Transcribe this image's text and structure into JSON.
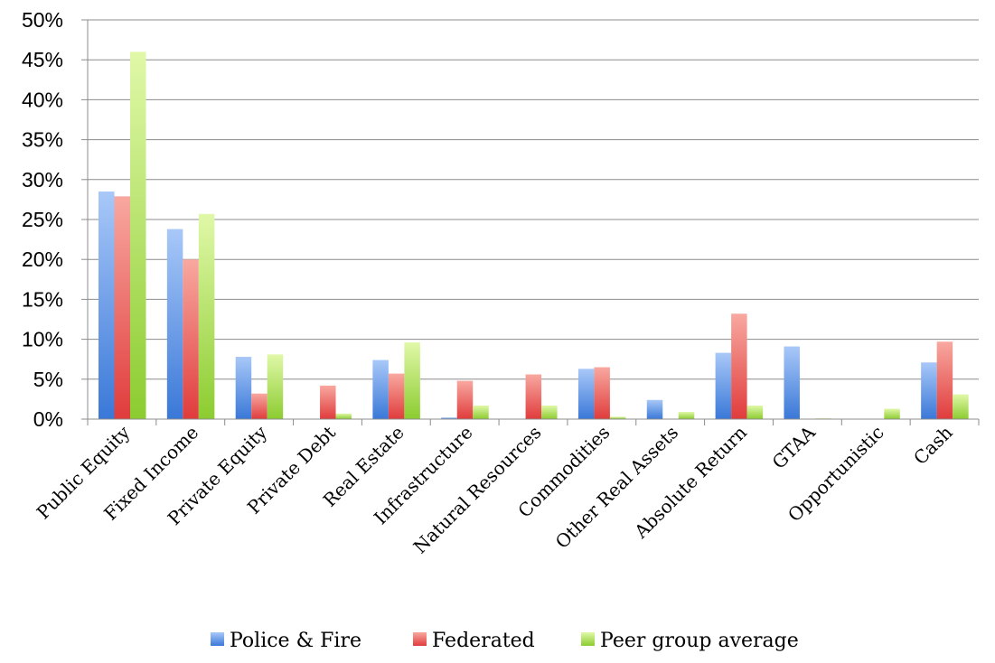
{
  "chart_data": {
    "type": "bar",
    "categories": [
      "Public Equity",
      "Fixed Income",
      "Private Equity",
      "Private Debt",
      "Real Estate",
      "Infrastructure",
      "Natural Resources",
      "Commodities",
      "Other Real Assets",
      "Absolute Return",
      "GTAA",
      "Opportunistic",
      "Cash"
    ],
    "series": [
      {
        "name": "Police & Fire",
        "color": "#4a8fe8",
        "values": [
          28.5,
          23.8,
          7.8,
          0,
          7.4,
          0.2,
          0,
          6.3,
          2.4,
          8.3,
          9.1,
          0,
          7.1
        ]
      },
      {
        "name": "Federated",
        "color": "#e85050",
        "values": [
          27.9,
          20.0,
          3.2,
          4.2,
          5.7,
          4.8,
          5.6,
          6.5,
          0,
          13.2,
          0,
          0,
          9.7
        ]
      },
      {
        "name": "Peer group average",
        "color": "#9ad43a",
        "values": [
          46.0,
          25.7,
          8.1,
          0.7,
          9.6,
          1.7,
          1.7,
          0.3,
          0.9,
          1.7,
          0.1,
          1.3,
          3.1
        ]
      }
    ],
    "ylim": [
      0,
      50
    ],
    "yticks": [
      "0%",
      "5%",
      "10%",
      "15%",
      "20%",
      "25%",
      "30%",
      "35%",
      "40%",
      "45%",
      "50%"
    ],
    "grid": true,
    "legend_position": "bottom",
    "title": "",
    "xlabel": "",
    "ylabel": ""
  }
}
